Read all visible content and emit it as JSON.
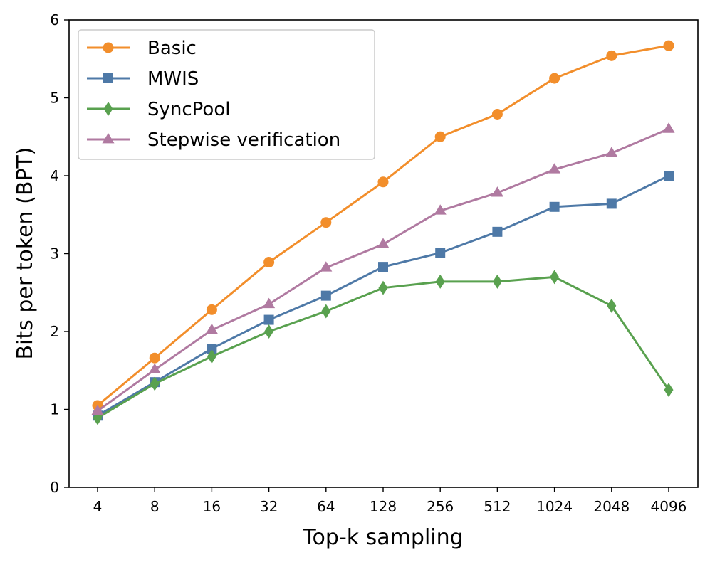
{
  "chart_data": {
    "type": "line",
    "title": "",
    "xlabel": "Top-k sampling",
    "ylabel": "Bits per token (BPT)",
    "categories": [
      "4",
      "8",
      "16",
      "32",
      "64",
      "128",
      "256",
      "512",
      "1024",
      "2048",
      "4096"
    ],
    "ylim": [
      0,
      6
    ],
    "yticks": [
      "0",
      "1",
      "2",
      "3",
      "4",
      "5",
      "6"
    ],
    "grid": false,
    "legend_position": "top-left",
    "series": [
      {
        "name": "Basic",
        "color": "#f28e2b",
        "marker": "circle",
        "values": [
          1.05,
          1.66,
          2.28,
          2.89,
          3.4,
          3.92,
          4.5,
          4.79,
          5.25,
          5.54,
          5.67
        ]
      },
      {
        "name": "MWIS",
        "color": "#4e79a7",
        "marker": "square",
        "values": [
          0.92,
          1.35,
          1.78,
          2.15,
          2.46,
          2.83,
          3.01,
          3.28,
          3.6,
          3.64,
          4.0
        ]
      },
      {
        "name": "SyncPool",
        "color": "#59a14f",
        "marker": "diamond",
        "values": [
          0.89,
          1.33,
          1.68,
          2.0,
          2.26,
          2.56,
          2.64,
          2.64,
          2.7,
          2.33,
          1.25
        ]
      },
      {
        "name": "Stepwise verification",
        "color": "#b07aa1",
        "marker": "triangle",
        "values": [
          0.98,
          1.51,
          2.02,
          2.35,
          2.82,
          3.12,
          3.55,
          3.78,
          4.08,
          4.29,
          4.6
        ]
      }
    ]
  }
}
